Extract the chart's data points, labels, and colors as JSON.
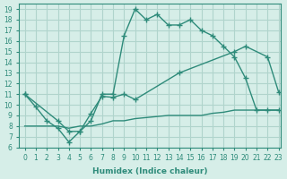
{
  "xlabel": "Humidex (Indice chaleur)",
  "bg_color": "#d6eee8",
  "line_color": "#2e8b7a",
  "grid_color": "#b0d4cc",
  "xlim": [
    -0.5,
    23.2
  ],
  "ylim": [
    6,
    19.5
  ],
  "xticks": [
    0,
    1,
    2,
    3,
    4,
    5,
    6,
    7,
    8,
    9,
    10,
    11,
    12,
    13,
    14,
    15,
    16,
    17,
    18,
    19,
    20,
    21,
    22,
    23
  ],
  "yticks": [
    6,
    7,
    8,
    9,
    10,
    11,
    12,
    13,
    14,
    15,
    16,
    17,
    18,
    19
  ],
  "curve1_x": [
    0,
    1,
    2,
    3,
    4,
    5,
    6,
    7,
    8,
    9,
    10,
    11,
    12,
    13,
    14,
    15,
    16,
    17,
    18,
    19,
    20,
    21,
    22,
    23
  ],
  "curve1_y": [
    11,
    9.8,
    8.5,
    7.8,
    6.5,
    7.5,
    8.5,
    11,
    11,
    16.5,
    19,
    18,
    18.5,
    17.5,
    17.5,
    18,
    17,
    16.5,
    15.5,
    14.5,
    12.5,
    9.5,
    9.5,
    9.5
  ],
  "curve2_x": [
    0,
    3,
    4,
    5,
    6,
    7,
    8,
    9,
    10,
    14,
    19,
    20,
    22,
    23
  ],
  "curve2_y": [
    11,
    8.5,
    7.5,
    7.5,
    9.2,
    10.8,
    10.7,
    11,
    10.5,
    13,
    15,
    15.5,
    14.5,
    11.2
  ],
  "curve3_x": [
    0,
    1,
    2,
    3,
    4,
    5,
    6,
    7,
    8,
    9,
    10,
    11,
    12,
    13,
    14,
    15,
    16,
    17,
    18,
    19,
    20,
    21,
    22,
    23
  ],
  "curve3_y": [
    8.0,
    8.0,
    8.0,
    8.0,
    7.8,
    8.0,
    8.0,
    8.2,
    8.5,
    8.5,
    8.7,
    8.8,
    8.9,
    9.0,
    9.0,
    9.0,
    9.0,
    9.2,
    9.3,
    9.5,
    9.5,
    9.5,
    9.5,
    9.5
  ]
}
